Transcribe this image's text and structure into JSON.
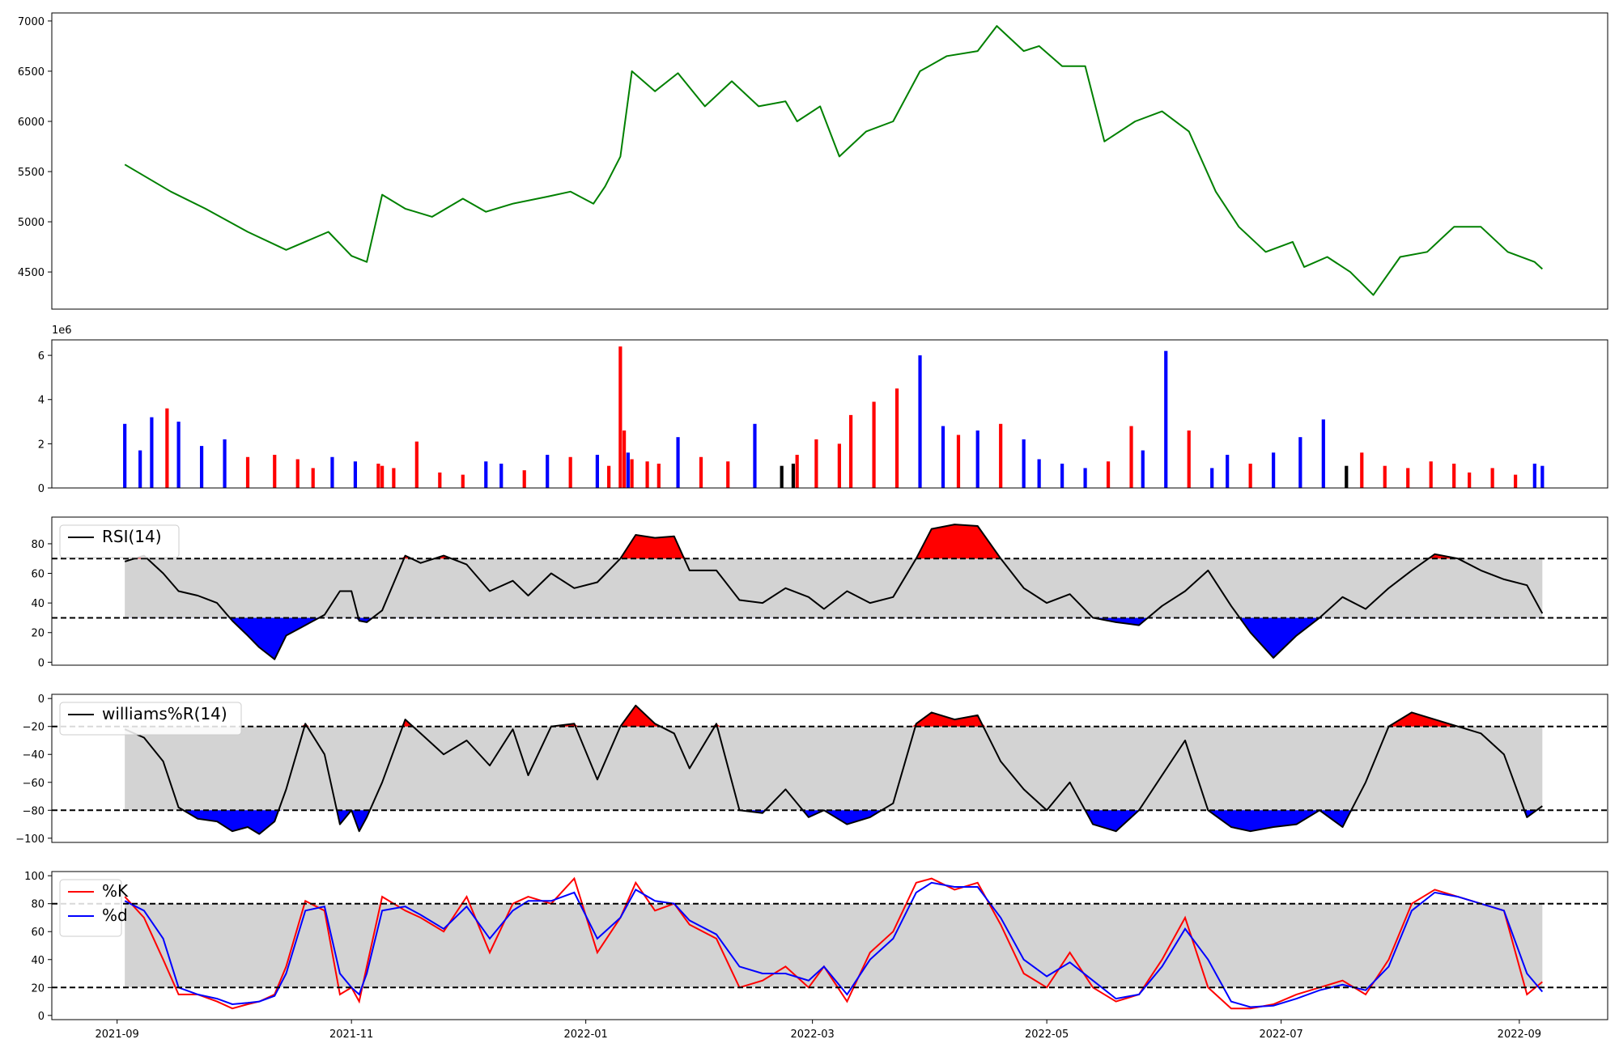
{
  "figure": {
    "background": "#ffffff",
    "frame_color": "#000000"
  },
  "x_axis": {
    "tick_labels": [
      "2021-09",
      "2021-11",
      "2022-01",
      "2022-03",
      "2022-05",
      "2022-07",
      "2022-09"
    ],
    "tick_dates": [
      "2021-09-01",
      "2021-11-01",
      "2022-01-01",
      "2022-03-01",
      "2022-05-01",
      "2022-07-01",
      "2022-09-01"
    ],
    "range": [
      "2021-08-15",
      "2022-09-24"
    ],
    "data_range": [
      "2021-09-03",
      "2022-09-07"
    ]
  },
  "chart_data": [
    {
      "id": "price",
      "type": "line",
      "color": "#008000",
      "ylim": [
        4130,
        7080
      ],
      "yticks": [
        4500,
        5000,
        5500,
        6000,
        6500,
        7000
      ],
      "ytick_labels": [
        "4500",
        "5000",
        "5500",
        "6000",
        "6500",
        "7000"
      ],
      "x": [
        "2021-09-03",
        "2021-09-15",
        "2021-09-24",
        "2021-10-05",
        "2021-10-15",
        "2021-10-26",
        "2021-11-01",
        "2021-11-05",
        "2021-11-09",
        "2021-11-15",
        "2021-11-22",
        "2021-11-30",
        "2021-12-06",
        "2021-12-13",
        "2021-12-22",
        "2021-12-28",
        "2022-01-03",
        "2022-01-06",
        "2022-01-10",
        "2022-01-13",
        "2022-01-19",
        "2022-01-25",
        "2022-02-01",
        "2022-02-08",
        "2022-02-15",
        "2022-02-22",
        "2022-02-25",
        "2022-03-03",
        "2022-03-08",
        "2022-03-15",
        "2022-03-22",
        "2022-03-29",
        "2022-04-05",
        "2022-04-13",
        "2022-04-18",
        "2022-04-25",
        "2022-04-29",
        "2022-05-05",
        "2022-05-11",
        "2022-05-16",
        "2022-05-24",
        "2022-05-31",
        "2022-06-07",
        "2022-06-14",
        "2022-06-20",
        "2022-06-27",
        "2022-07-04",
        "2022-07-07",
        "2022-07-13",
        "2022-07-19",
        "2022-07-25",
        "2022-08-01",
        "2022-08-08",
        "2022-08-15",
        "2022-08-22",
        "2022-08-29",
        "2022-09-05",
        "2022-09-07"
      ],
      "y": [
        5570,
        5300,
        5130,
        4900,
        4720,
        4900,
        4660,
        4600,
        5270,
        5130,
        5050,
        5230,
        5100,
        5180,
        5250,
        5300,
        5180,
        5350,
        5650,
        6500,
        6300,
        6480,
        6150,
        6400,
        6150,
        6200,
        6000,
        6150,
        5650,
        5900,
        6000,
        6500,
        6650,
        6700,
        6950,
        6700,
        6750,
        6550,
        6550,
        5800,
        6000,
        6100,
        5900,
        5300,
        4950,
        4700,
        4800,
        4550,
        4650,
        4500,
        4270,
        4650,
        4700,
        4950,
        4950,
        4700,
        4600,
        4530
      ]
    },
    {
      "id": "volume",
      "type": "bar",
      "exponent_label": "1e6",
      "ylim": [
        0,
        6.7
      ],
      "yticks": [
        0,
        2,
        4,
        6
      ],
      "ytick_labels": [
        "0",
        "2",
        "4",
        "6"
      ],
      "colors": {
        "up": "#0000ff",
        "down": "#ff0000",
        "flat": "#000000"
      },
      "x": [
        "2021-09-03",
        "2021-09-07",
        "2021-09-10",
        "2021-09-14",
        "2021-09-17",
        "2021-09-23",
        "2021-09-29",
        "2021-10-05",
        "2021-10-12",
        "2021-10-18",
        "2021-10-22",
        "2021-10-27",
        "2021-11-02",
        "2021-11-08",
        "2021-11-09",
        "2021-11-12",
        "2021-11-18",
        "2021-11-24",
        "2021-11-30",
        "2021-12-06",
        "2021-12-10",
        "2021-12-16",
        "2021-12-22",
        "2021-12-28",
        "2022-01-04",
        "2022-01-07",
        "2022-01-10",
        "2022-01-11",
        "2022-01-12",
        "2022-01-13",
        "2022-01-17",
        "2022-01-20",
        "2022-01-25",
        "2022-01-31",
        "2022-02-07",
        "2022-02-14",
        "2022-02-21",
        "2022-02-24",
        "2022-02-25",
        "2022-03-02",
        "2022-03-08",
        "2022-03-11",
        "2022-03-17",
        "2022-03-23",
        "2022-03-29",
        "2022-04-04",
        "2022-04-08",
        "2022-04-13",
        "2022-04-19",
        "2022-04-25",
        "2022-04-29",
        "2022-05-05",
        "2022-05-11",
        "2022-05-17",
        "2022-05-23",
        "2022-05-26",
        "2022-06-01",
        "2022-06-07",
        "2022-06-13",
        "2022-06-17",
        "2022-06-23",
        "2022-06-29",
        "2022-07-06",
        "2022-07-12",
        "2022-07-18",
        "2022-07-22",
        "2022-07-28",
        "2022-08-03",
        "2022-08-09",
        "2022-08-15",
        "2022-08-19",
        "2022-08-25",
        "2022-08-31",
        "2022-09-05",
        "2022-09-07"
      ],
      "values": [
        2.9,
        1.7,
        3.2,
        3.6,
        3.0,
        1.9,
        2.2,
        1.4,
        1.5,
        1.3,
        0.9,
        1.4,
        1.2,
        1.1,
        1.0,
        0.9,
        2.1,
        0.7,
        0.6,
        1.2,
        1.1,
        0.8,
        1.5,
        1.4,
        1.5,
        1.0,
        6.4,
        2.6,
        1.6,
        1.3,
        1.2,
        1.1,
        2.3,
        1.4,
        1.2,
        2.9,
        1.0,
        1.1,
        1.5,
        2.2,
        2.0,
        3.3,
        3.9,
        4.5,
        6.0,
        2.8,
        2.4,
        2.6,
        2.9,
        2.2,
        1.3,
        1.1,
        0.9,
        1.2,
        2.8,
        1.7,
        6.2,
        2.6,
        0.9,
        1.5,
        1.1,
        1.6,
        2.3,
        3.1,
        1.0,
        1.6,
        1.0,
        0.9,
        1.2,
        1.1,
        0.7,
        0.9,
        0.6,
        1.1,
        1.0
      ],
      "directions": [
        "up",
        "up",
        "up",
        "down",
        "up",
        "up",
        "up",
        "down",
        "down",
        "down",
        "down",
        "up",
        "up",
        "down",
        "down",
        "down",
        "down",
        "down",
        "down",
        "up",
        "up",
        "down",
        "up",
        "down",
        "up",
        "down",
        "down",
        "down",
        "up",
        "down",
        "down",
        "down",
        "up",
        "down",
        "down",
        "up",
        "flat",
        "flat",
        "down",
        "down",
        "down",
        "down",
        "down",
        "down",
        "up",
        "up",
        "down",
        "up",
        "down",
        "up",
        "up",
        "up",
        "up",
        "down",
        "down",
        "up",
        "up",
        "down",
        "up",
        "up",
        "down",
        "up",
        "up",
        "up",
        "flat",
        "down",
        "down",
        "down",
        "down",
        "down",
        "down",
        "down",
        "down",
        "up",
        "up"
      ]
    },
    {
      "id": "rsi",
      "type": "line",
      "color": "#000000",
      "legend": "RSI(14)",
      "ylim": [
        -2,
        98
      ],
      "yticks": [
        0,
        20,
        40,
        60,
        80
      ],
      "ytick_labels": [
        "0",
        "20",
        "40",
        "60",
        "80"
      ],
      "bands": {
        "upper": 70,
        "lower": 30,
        "fill": "#d3d3d3",
        "over_color": "#ff0000",
        "under_color": "#0000ff"
      },
      "x": [
        "2021-09-03",
        "2021-09-08",
        "2021-09-13",
        "2021-09-17",
        "2021-09-22",
        "2021-09-27",
        "2021-10-01",
        "2021-10-05",
        "2021-10-08",
        "2021-10-12",
        "2021-10-15",
        "2021-10-20",
        "2021-10-25",
        "2021-10-29",
        "2021-11-01",
        "2021-11-03",
        "2021-11-05",
        "2021-11-09",
        "2021-11-15",
        "2021-11-19",
        "2021-11-25",
        "2021-12-01",
        "2021-12-07",
        "2021-12-13",
        "2021-12-17",
        "2021-12-23",
        "2021-12-29",
        "2022-01-04",
        "2022-01-10",
        "2022-01-14",
        "2022-01-19",
        "2022-01-24",
        "2022-01-28",
        "2022-02-04",
        "2022-02-10",
        "2022-02-16",
        "2022-02-22",
        "2022-02-28",
        "2022-03-04",
        "2022-03-10",
        "2022-03-16",
        "2022-03-22",
        "2022-03-28",
        "2022-04-01",
        "2022-04-07",
        "2022-04-13",
        "2022-04-19",
        "2022-04-25",
        "2022-05-01",
        "2022-05-07",
        "2022-05-13",
        "2022-05-19",
        "2022-05-25",
        "2022-05-31",
        "2022-06-06",
        "2022-06-12",
        "2022-06-18",
        "2022-06-23",
        "2022-06-29",
        "2022-07-05",
        "2022-07-11",
        "2022-07-17",
        "2022-07-23",
        "2022-07-29",
        "2022-08-04",
        "2022-08-10",
        "2022-08-16",
        "2022-08-22",
        "2022-08-28",
        "2022-09-03",
        "2022-09-07"
      ],
      "y": [
        68,
        72,
        60,
        48,
        45,
        40,
        28,
        18,
        10,
        2,
        18,
        25,
        32,
        48,
        48,
        28,
        27,
        35,
        72,
        67,
        72,
        66,
        48,
        55,
        45,
        60,
        50,
        54,
        70,
        86,
        84,
        85,
        62,
        62,
        42,
        40,
        50,
        44,
        36,
        48,
        40,
        44,
        70,
        90,
        93,
        92,
        70,
        50,
        40,
        46,
        30,
        27,
        25,
        38,
        48,
        62,
        38,
        20,
        3,
        18,
        30,
        44,
        36,
        50,
        62,
        73,
        70,
        62,
        56,
        52,
        33
      ]
    },
    {
      "id": "williams",
      "type": "line",
      "color": "#000000",
      "legend": "williams%R(14)",
      "ylim": [
        -103,
        3
      ],
      "yticks": [
        0,
        -20,
        -40,
        -60,
        -80,
        -100
      ],
      "ytick_labels": [
        "0",
        "−20",
        "−40",
        "−60",
        "−80",
        "−100"
      ],
      "bands": {
        "upper": -20,
        "lower": -80,
        "fill": "#d3d3d3",
        "over_color": "#ff0000",
        "under_color": "#0000ff"
      },
      "x": [
        "2021-09-03",
        "2021-09-08",
        "2021-09-13",
        "2021-09-17",
        "2021-09-22",
        "2021-09-27",
        "2021-10-01",
        "2021-10-05",
        "2021-10-08",
        "2021-10-12",
        "2021-10-15",
        "2021-10-20",
        "2021-10-25",
        "2021-10-29",
        "2021-11-01",
        "2021-11-03",
        "2021-11-05",
        "2021-11-09",
        "2021-11-15",
        "2021-11-19",
        "2021-11-25",
        "2021-12-01",
        "2021-12-07",
        "2021-12-13",
        "2021-12-17",
        "2021-12-23",
        "2021-12-29",
        "2022-01-04",
        "2022-01-10",
        "2022-01-14",
        "2022-01-19",
        "2022-01-24",
        "2022-01-28",
        "2022-02-04",
        "2022-02-10",
        "2022-02-16",
        "2022-02-22",
        "2022-02-28",
        "2022-03-04",
        "2022-03-10",
        "2022-03-16",
        "2022-03-22",
        "2022-03-28",
        "2022-04-01",
        "2022-04-07",
        "2022-04-13",
        "2022-04-19",
        "2022-04-25",
        "2022-05-01",
        "2022-05-07",
        "2022-05-13",
        "2022-05-19",
        "2022-05-25",
        "2022-05-31",
        "2022-06-06",
        "2022-06-12",
        "2022-06-18",
        "2022-06-23",
        "2022-06-29",
        "2022-07-05",
        "2022-07-11",
        "2022-07-17",
        "2022-07-23",
        "2022-07-29",
        "2022-08-04",
        "2022-08-10",
        "2022-08-16",
        "2022-08-22",
        "2022-08-28",
        "2022-09-03",
        "2022-09-07"
      ],
      "y": [
        -22,
        -28,
        -45,
        -78,
        -86,
        -88,
        -95,
        -92,
        -97,
        -88,
        -65,
        -18,
        -40,
        -90,
        -80,
        -95,
        -85,
        -60,
        -15,
        -25,
        -40,
        -30,
        -48,
        -22,
        -55,
        -20,
        -18,
        -58,
        -20,
        -5,
        -18,
        -25,
        -50,
        -18,
        -80,
        -82,
        -65,
        -85,
        -80,
        -90,
        -85,
        -75,
        -18,
        -10,
        -15,
        -12,
        -45,
        -65,
        -80,
        -60,
        -90,
        -95,
        -80,
        -55,
        -30,
        -80,
        -92,
        -95,
        -92,
        -90,
        -80,
        -92,
        -60,
        -20,
        -10,
        -15,
        -20,
        -25,
        -40,
        -85,
        -77
      ]
    },
    {
      "id": "stochastic",
      "type": "line",
      "ylim": [
        -3,
        103
      ],
      "yticks": [
        0,
        20,
        40,
        60,
        80,
        100
      ],
      "ytick_labels": [
        "0",
        "20",
        "40",
        "60",
        "80",
        "100"
      ],
      "bands": {
        "upper": 80,
        "lower": 20,
        "fill": "#d3d3d3"
      },
      "x": [
        "2021-09-03",
        "2021-09-08",
        "2021-09-13",
        "2021-09-17",
        "2021-09-22",
        "2021-09-27",
        "2021-10-01",
        "2021-10-05",
        "2021-10-08",
        "2021-10-12",
        "2021-10-15",
        "2021-10-20",
        "2021-10-25",
        "2021-10-29",
        "2021-11-01",
        "2021-11-03",
        "2021-11-05",
        "2021-11-09",
        "2021-11-15",
        "2021-11-19",
        "2021-11-25",
        "2021-12-01",
        "2021-12-07",
        "2021-12-13",
        "2021-12-17",
        "2021-12-23",
        "2021-12-29",
        "2022-01-04",
        "2022-01-10",
        "2022-01-14",
        "2022-01-19",
        "2022-01-24",
        "2022-01-28",
        "2022-02-04",
        "2022-02-10",
        "2022-02-16",
        "2022-02-22",
        "2022-02-28",
        "2022-03-04",
        "2022-03-10",
        "2022-03-16",
        "2022-03-22",
        "2022-03-28",
        "2022-04-01",
        "2022-04-07",
        "2022-04-13",
        "2022-04-19",
        "2022-04-25",
        "2022-05-01",
        "2022-05-07",
        "2022-05-13",
        "2022-05-19",
        "2022-05-25",
        "2022-05-31",
        "2022-06-06",
        "2022-06-12",
        "2022-06-18",
        "2022-06-23",
        "2022-06-29",
        "2022-07-05",
        "2022-07-11",
        "2022-07-17",
        "2022-07-23",
        "2022-07-29",
        "2022-08-04",
        "2022-08-10",
        "2022-08-16",
        "2022-08-22",
        "2022-08-28",
        "2022-09-03",
        "2022-09-07"
      ],
      "series": [
        {
          "name": "%K",
          "color": "#ff0000",
          "values": [
            85,
            70,
            40,
            15,
            15,
            10,
            5,
            8,
            10,
            15,
            35,
            82,
            75,
            15,
            20,
            10,
            35,
            85,
            75,
            70,
            60,
            85,
            45,
            80,
            85,
            80,
            98,
            45,
            70,
            95,
            75,
            80,
            65,
            55,
            20,
            25,
            35,
            20,
            35,
            10,
            45,
            60,
            95,
            98,
            90,
            95,
            65,
            30,
            20,
            45,
            20,
            10,
            15,
            40,
            70,
            20,
            5,
            5,
            8,
            15,
            20,
            25,
            15,
            40,
            80,
            90,
            85,
            80,
            75,
            15,
            24
          ]
        },
        {
          "name": "%d",
          "color": "#0000ff",
          "values": [
            82,
            75,
            55,
            20,
            15,
            12,
            8,
            9,
            10,
            14,
            30,
            75,
            78,
            30,
            20,
            15,
            30,
            75,
            78,
            72,
            62,
            78,
            55,
            75,
            82,
            82,
            88,
            55,
            70,
            90,
            82,
            80,
            68,
            58,
            35,
            30,
            30,
            25,
            35,
            15,
            40,
            55,
            88,
            95,
            92,
            92,
            70,
            40,
            28,
            38,
            25,
            12,
            15,
            35,
            62,
            40,
            10,
            6,
            7,
            12,
            18,
            22,
            18,
            35,
            75,
            88,
            85,
            80,
            75,
            30,
            17
          ]
        }
      ]
    }
  ]
}
